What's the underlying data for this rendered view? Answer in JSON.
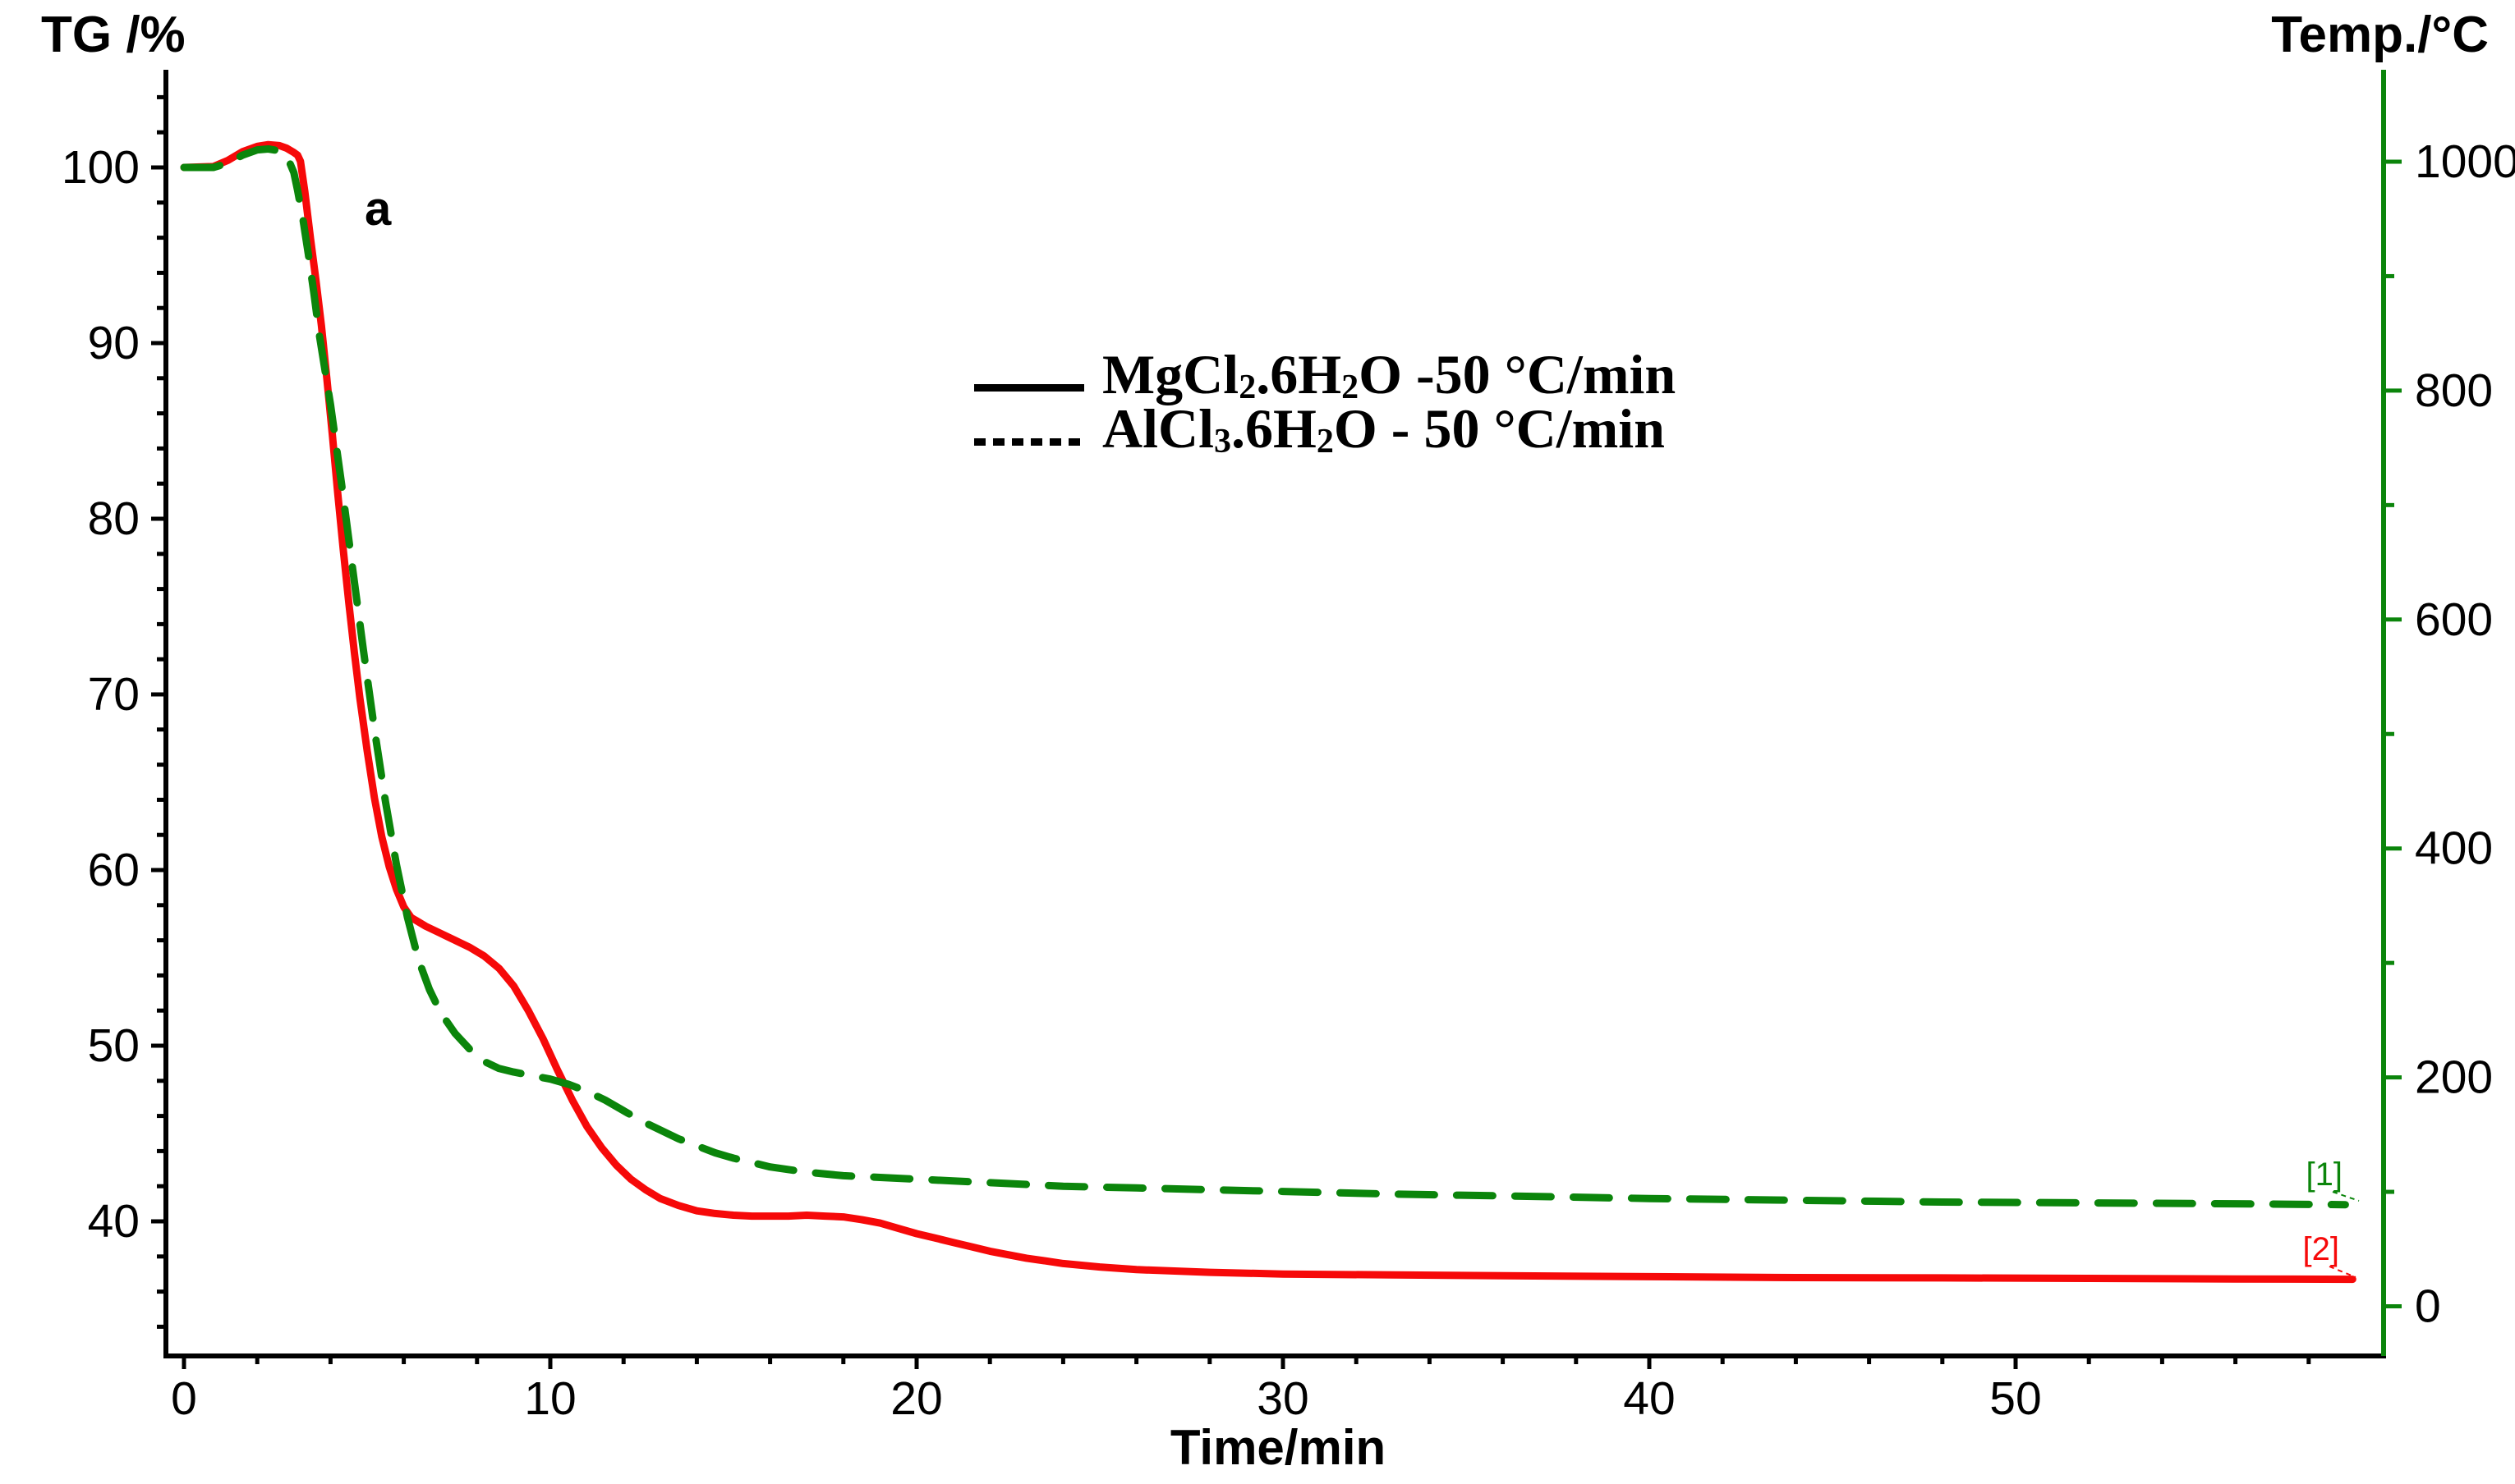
{
  "figure": {
    "panel_label": "a",
    "background": "#ffffff"
  },
  "chart_data": {
    "type": "line",
    "x_axis": {
      "label": "Time/min",
      "range": [
        0,
        60
      ],
      "major_ticks": [
        0,
        10,
        20,
        30,
        40,
        50
      ],
      "minor_tick_step": 2,
      "color": "#000000"
    },
    "y_axis_left": {
      "label": "TG /%",
      "range_top": 105.5,
      "range_bottom": 32.3,
      "major_ticks": [
        100,
        90,
        80,
        70,
        60,
        50,
        40
      ],
      "minor_tick_step": 2,
      "color": "#000000"
    },
    "y_axis_right": {
      "label": "Temp./°C",
      "range_top": 1078,
      "range_bottom": -43,
      "major_ticks": [
        1000,
        800,
        600,
        400,
        200,
        0
      ],
      "minor_tick_step": 100,
      "color": "#0b850b"
    },
    "legend": {
      "entries": [
        {
          "line_style": "solid",
          "line_color": "#000000",
          "text_plain": "MgCl2.6H2O -50 °C/min",
          "parts": [
            {
              "text": "MgCl"
            },
            {
              "sub": "2"
            },
            {
              "text": ".6H"
            },
            {
              "sub": "2"
            },
            {
              "text": "O -50 °C/min"
            }
          ]
        },
        {
          "line_style": "dashed",
          "line_color": "#000000",
          "text_plain": "AlCl3.6H2O - 50 °C/min",
          "parts": [
            {
              "text": "AlCl"
            },
            {
              "sub": "3"
            },
            {
              "text": ".6H"
            },
            {
              "sub": "2"
            },
            {
              "text": "O - 50 °C/min"
            }
          ]
        }
      ]
    },
    "series": [
      {
        "marker": "[1]",
        "name_plain": "AlCl3.6H2O - 50 °C/min",
        "color": "#0b850b",
        "style": "dashed",
        "points_t_tg": [
          [
            0,
            100
          ],
          [
            0.8,
            100
          ],
          [
            1.2,
            100.25
          ],
          [
            1.6,
            100.7
          ],
          [
            2.0,
            101.0
          ],
          [
            2.3,
            101.05
          ],
          [
            2.6,
            100.95
          ],
          [
            2.85,
            100.45
          ],
          [
            3.0,
            99.7
          ],
          [
            3.1,
            98.7
          ],
          [
            3.25,
            97.0
          ],
          [
            3.4,
            95.0
          ],
          [
            3.55,
            92.8
          ],
          [
            3.7,
            90.4
          ],
          [
            4.0,
            86.5
          ],
          [
            4.3,
            82.0
          ],
          [
            4.6,
            77.2
          ],
          [
            4.9,
            72.5
          ],
          [
            5.2,
            68.0
          ],
          [
            5.5,
            63.9
          ],
          [
            5.8,
            60.3
          ],
          [
            6.1,
            57.3
          ],
          [
            6.4,
            54.9
          ],
          [
            6.7,
            53.2
          ],
          [
            7.0,
            51.9
          ],
          [
            7.4,
            50.7
          ],
          [
            7.8,
            49.8
          ],
          [
            8.2,
            49.1
          ],
          [
            8.6,
            48.7
          ],
          [
            9.0,
            48.5
          ],
          [
            9.5,
            48.3
          ],
          [
            10.0,
            48.1
          ],
          [
            10.5,
            47.8
          ],
          [
            11.0,
            47.4
          ],
          [
            11.5,
            46.9
          ],
          [
            12.0,
            46.3
          ],
          [
            12.5,
            45.7
          ],
          [
            13.0,
            45.2
          ],
          [
            13.5,
            44.7
          ],
          [
            14.0,
            44.3
          ],
          [
            14.5,
            43.9
          ],
          [
            15.0,
            43.6
          ],
          [
            15.5,
            43.35
          ],
          [
            16.0,
            43.1
          ],
          [
            17.0,
            42.8
          ],
          [
            18.0,
            42.6
          ],
          [
            19.0,
            42.5
          ],
          [
            20.0,
            42.4
          ],
          [
            21.0,
            42.3
          ],
          [
            22.0,
            42.2
          ],
          [
            24.0,
            42.0
          ],
          [
            26.0,
            41.9
          ],
          [
            28.0,
            41.8
          ],
          [
            30.0,
            41.7
          ],
          [
            33.0,
            41.55
          ],
          [
            36.0,
            41.45
          ],
          [
            40.0,
            41.3
          ],
          [
            44.0,
            41.2
          ],
          [
            48.0,
            41.1
          ],
          [
            52.0,
            41.05
          ],
          [
            56.0,
            41.0
          ],
          [
            59.0,
            40.95
          ]
        ]
      },
      {
        "marker": "[2]",
        "name_plain": "MgCl2.6H2O -50 °C/min",
        "color": "#f60909",
        "style": "solid",
        "points_t_tg": [
          [
            0,
            100
          ],
          [
            0.8,
            100.05
          ],
          [
            1.2,
            100.4
          ],
          [
            1.6,
            100.9
          ],
          [
            2.0,
            101.2
          ],
          [
            2.3,
            101.3
          ],
          [
            2.6,
            101.25
          ],
          [
            2.8,
            101.1
          ],
          [
            3.0,
            100.85
          ],
          [
            3.1,
            100.7
          ],
          [
            3.18,
            100.35
          ],
          [
            3.3,
            98.6
          ],
          [
            3.45,
            96.0
          ],
          [
            3.6,
            93.6
          ],
          [
            3.75,
            91.0
          ],
          [
            3.9,
            88.0
          ],
          [
            4.05,
            84.8
          ],
          [
            4.2,
            81.4
          ],
          [
            4.35,
            78.2
          ],
          [
            4.5,
            75.2
          ],
          [
            4.65,
            72.4
          ],
          [
            4.8,
            69.8
          ],
          [
            5.0,
            66.8
          ],
          [
            5.2,
            64.1
          ],
          [
            5.4,
            61.9
          ],
          [
            5.6,
            60.2
          ],
          [
            5.8,
            58.9
          ],
          [
            6.0,
            57.9
          ],
          [
            6.2,
            57.3
          ],
          [
            6.6,
            56.8
          ],
          [
            7.0,
            56.4
          ],
          [
            7.4,
            56.0
          ],
          [
            7.8,
            55.6
          ],
          [
            8.2,
            55.1
          ],
          [
            8.6,
            54.4
          ],
          [
            9.0,
            53.4
          ],
          [
            9.4,
            52.0
          ],
          [
            9.8,
            50.4
          ],
          [
            10.2,
            48.6
          ],
          [
            10.6,
            46.9
          ],
          [
            11.0,
            45.4
          ],
          [
            11.4,
            44.2
          ],
          [
            11.8,
            43.2
          ],
          [
            12.2,
            42.4
          ],
          [
            12.6,
            41.8
          ],
          [
            13.0,
            41.3
          ],
          [
            13.5,
            40.9
          ],
          [
            14.0,
            40.6
          ],
          [
            14.5,
            40.45
          ],
          [
            15.0,
            40.35
          ],
          [
            15.5,
            40.3
          ],
          [
            16.0,
            40.3
          ],
          [
            16.5,
            40.3
          ],
          [
            17.0,
            40.35
          ],
          [
            17.5,
            40.3
          ],
          [
            18.0,
            40.25
          ],
          [
            18.5,
            40.1
          ],
          [
            19.0,
            39.9
          ],
          [
            19.5,
            39.6
          ],
          [
            20.0,
            39.3
          ],
          [
            20.5,
            39.05
          ],
          [
            21.0,
            38.8
          ],
          [
            21.5,
            38.55
          ],
          [
            22.0,
            38.3
          ],
          [
            22.5,
            38.1
          ],
          [
            23.0,
            37.9
          ],
          [
            23.5,
            37.75
          ],
          [
            24.0,
            37.6
          ],
          [
            25.0,
            37.4
          ],
          [
            26.0,
            37.25
          ],
          [
            28.0,
            37.1
          ],
          [
            30.0,
            37.0
          ],
          [
            33.0,
            36.95
          ],
          [
            36.0,
            36.9
          ],
          [
            40.0,
            36.85
          ],
          [
            44.0,
            36.8
          ],
          [
            48.0,
            36.78
          ],
          [
            52.0,
            36.75
          ],
          [
            56.0,
            36.72
          ],
          [
            59.2,
            36.7
          ]
        ]
      }
    ]
  }
}
